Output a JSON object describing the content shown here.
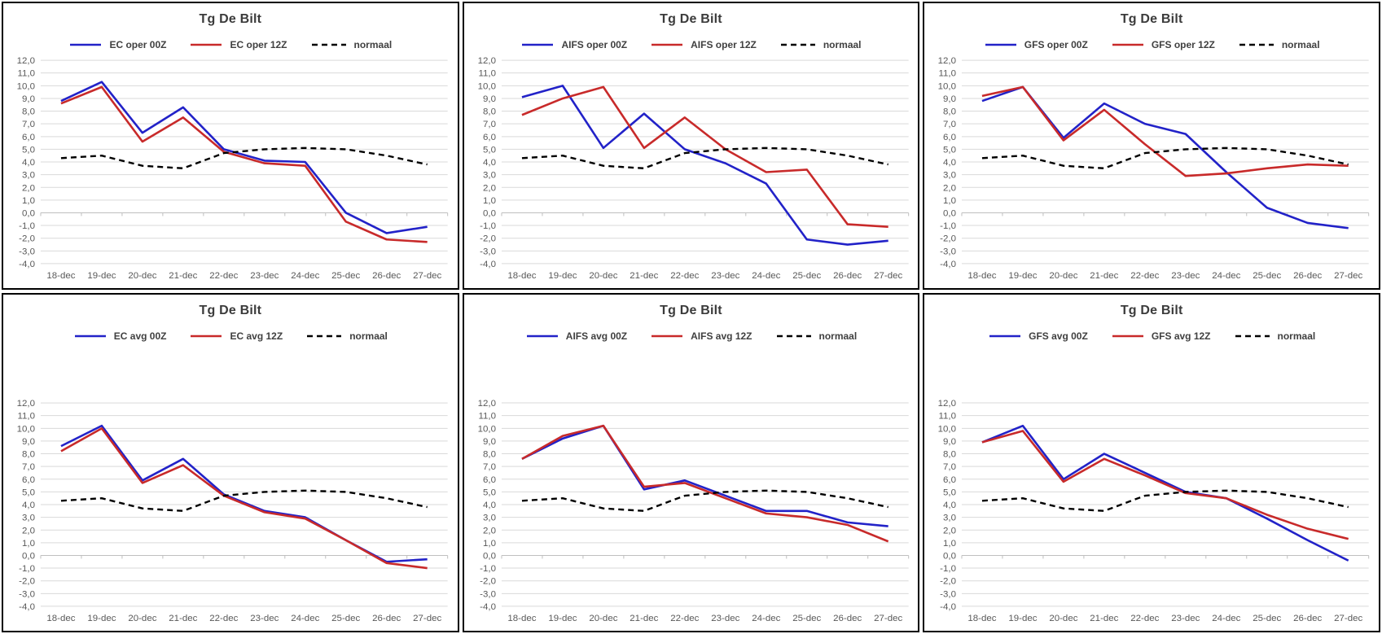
{
  "page": {
    "background": "#ffffff"
  },
  "colors": {
    "series_00z": "#2222c8",
    "series_12z": "#c82a2a",
    "normal_line": "#000000",
    "gridline": "#d9d9d9",
    "zero_line": "#bfbfbf",
    "axis_label": "#595959",
    "title_text": "#3b3b3b",
    "legend_text": "#404040",
    "panel_border": "#000000"
  },
  "chart_data": [
    {
      "type": "line",
      "title": "Tg De Bilt",
      "xlabel": "",
      "ylabel": "",
      "ylim": [
        -4,
        12
      ],
      "y_step": 1,
      "grid": "horizontal",
      "legend_position": "top",
      "y_tick_labels": [
        "12,0",
        "11,0",
        "10,0",
        "9,0",
        "8,0",
        "7,0",
        "6,0",
        "5,0",
        "4,0",
        "3,0",
        "2,0",
        "1,0",
        "0,0",
        "-1,0",
        "-2,0",
        "-3,0",
        "-4,0"
      ],
      "categories": [
        "18-dec",
        "19-dec",
        "20-dec",
        "21-dec",
        "22-dec",
        "23-dec",
        "24-dec",
        "25-dec",
        "26-dec",
        "27-dec"
      ],
      "series": [
        {
          "name": "EC oper 00Z",
          "color": "#2222c8",
          "style": "solid",
          "values": [
            8.8,
            10.3,
            6.3,
            8.3,
            5.0,
            4.1,
            4.0,
            0.0,
            -1.6,
            -1.1
          ]
        },
        {
          "name": "EC oper 12Z",
          "color": "#c82a2a",
          "style": "solid",
          "values": [
            8.6,
            9.9,
            5.6,
            7.5,
            4.8,
            3.9,
            3.7,
            -0.7,
            -2.1,
            -2.3
          ]
        },
        {
          "name": "normaal",
          "color": "#000000",
          "style": "dashed",
          "values": [
            4.3,
            4.5,
            3.7,
            3.5,
            4.7,
            5.0,
            5.1,
            5.0,
            4.5,
            3.8
          ]
        }
      ]
    },
    {
      "type": "line",
      "title": "Tg De Bilt",
      "xlabel": "",
      "ylabel": "",
      "ylim": [
        -4,
        12
      ],
      "y_step": 1,
      "grid": "horizontal",
      "legend_position": "top",
      "y_tick_labels": [
        "12,0",
        "11,0",
        "10,0",
        "9,0",
        "8,0",
        "7,0",
        "6,0",
        "5,0",
        "4,0",
        "3,0",
        "2,0",
        "1,0",
        "0,0",
        "-1,0",
        "-2,0",
        "-3,0",
        "-4,0"
      ],
      "categories": [
        "18-dec",
        "19-dec",
        "20-dec",
        "21-dec",
        "22-dec",
        "23-dec",
        "24-dec",
        "25-dec",
        "26-dec",
        "27-dec"
      ],
      "series": [
        {
          "name": "AIFS oper 00Z",
          "color": "#2222c8",
          "style": "solid",
          "values": [
            9.1,
            10.0,
            5.1,
            7.8,
            5.0,
            3.9,
            2.3,
            -2.1,
            -2.5,
            -2.2
          ]
        },
        {
          "name": "AIFS oper 12Z",
          "color": "#c82a2a",
          "style": "solid",
          "values": [
            7.7,
            9.0,
            9.9,
            5.1,
            7.5,
            5.0,
            3.2,
            3.4,
            -0.9,
            -1.1
          ]
        },
        {
          "name": "normaal",
          "color": "#000000",
          "style": "dashed",
          "values": [
            4.3,
            4.5,
            3.7,
            3.5,
            4.7,
            5.0,
            5.1,
            5.0,
            4.5,
            3.8
          ]
        }
      ]
    },
    {
      "type": "line",
      "title": "Tg De Bilt",
      "xlabel": "",
      "ylabel": "",
      "ylim": [
        -4,
        12
      ],
      "y_step": 1,
      "grid": "horizontal",
      "legend_position": "top",
      "y_tick_labels": [
        "12,0",
        "11,0",
        "10,0",
        "9,0",
        "8,0",
        "7,0",
        "6,0",
        "5,0",
        "4,0",
        "3,0",
        "2,0",
        "1,0",
        "0,0",
        "-1,0",
        "-2,0",
        "-3,0",
        "-4,0"
      ],
      "categories": [
        "18-dec",
        "19-dec",
        "20-dec",
        "21-dec",
        "22-dec",
        "23-dec",
        "24-dec",
        "25-dec",
        "26-dec",
        "27-dec"
      ],
      "series": [
        {
          "name": "GFS oper 00Z",
          "color": "#2222c8",
          "style": "solid",
          "values": [
            8.8,
            9.9,
            5.9,
            8.6,
            7.0,
            6.2,
            3.2,
            0.4,
            -0.8,
            -1.2
          ]
        },
        {
          "name": "GFS oper 12Z",
          "color": "#c82a2a",
          "style": "solid",
          "values": [
            9.2,
            9.9,
            5.7,
            8.1,
            5.4,
            2.9,
            3.1,
            3.5,
            3.8,
            3.7
          ]
        },
        {
          "name": "normaal",
          "color": "#000000",
          "style": "dashed",
          "values": [
            4.3,
            4.5,
            3.7,
            3.5,
            4.7,
            5.0,
            5.1,
            5.0,
            4.5,
            3.8
          ]
        }
      ]
    },
    {
      "type": "line",
      "title": "Tg De Bilt",
      "xlabel": "",
      "ylabel": "",
      "ylim": [
        -4,
        12
      ],
      "y_step": 1,
      "grid": "horizontal",
      "legend_position": "top",
      "y_tick_labels": [
        "12,0",
        "11,0",
        "10,0",
        "9,0",
        "8,0",
        "7,0",
        "6,0",
        "5,0",
        "4,0",
        "3,0",
        "2,0",
        "1,0",
        "0,0",
        "-1,0",
        "-2,0",
        "-3,0",
        "-4,0"
      ],
      "categories": [
        "18-dec",
        "19-dec",
        "20-dec",
        "21-dec",
        "22-dec",
        "23-dec",
        "24-dec",
        "25-dec",
        "26-dec",
        "27-dec"
      ],
      "series": [
        {
          "name": "EC avg 00Z",
          "color": "#2222c8",
          "style": "solid",
          "values": [
            8.6,
            10.2,
            5.9,
            7.6,
            4.8,
            3.5,
            3.0,
            1.2,
            -0.5,
            -0.3
          ]
        },
        {
          "name": "EC avg 12Z",
          "color": "#c82a2a",
          "style": "solid",
          "values": [
            8.2,
            10.0,
            5.7,
            7.1,
            4.7,
            3.4,
            2.9,
            1.2,
            -0.6,
            -1.0
          ]
        },
        {
          "name": "normaal",
          "color": "#000000",
          "style": "dashed",
          "values": [
            4.3,
            4.5,
            3.7,
            3.5,
            4.7,
            5.0,
            5.1,
            5.0,
            4.5,
            3.8
          ]
        }
      ]
    },
    {
      "type": "line",
      "title": "Tg De Bilt",
      "xlabel": "",
      "ylabel": "",
      "ylim": [
        -4,
        12
      ],
      "y_step": 1,
      "grid": "horizontal",
      "legend_position": "top",
      "y_tick_labels": [
        "12,0",
        "11,0",
        "10,0",
        "9,0",
        "8,0",
        "7,0",
        "6,0",
        "5,0",
        "4,0",
        "3,0",
        "2,0",
        "1,0",
        "0,0",
        "-1,0",
        "-2,0",
        "-3,0",
        "-4,0"
      ],
      "categories": [
        "18-dec",
        "19-dec",
        "20-dec",
        "21-dec",
        "22-dec",
        "23-dec",
        "24-dec",
        "25-dec",
        "26-dec",
        "27-dec"
      ],
      "series": [
        {
          "name": "AIFS avg 00Z",
          "color": "#2222c8",
          "style": "solid",
          "values": [
            7.6,
            9.2,
            10.2,
            5.2,
            5.9,
            4.7,
            3.5,
            3.5,
            2.6,
            2.3
          ]
        },
        {
          "name": "AIFS avg 12Z",
          "color": "#c82a2a",
          "style": "solid",
          "values": [
            7.6,
            9.4,
            10.2,
            5.4,
            5.7,
            4.5,
            3.3,
            3.0,
            2.4,
            1.1
          ]
        },
        {
          "name": "normaal",
          "color": "#000000",
          "style": "dashed",
          "values": [
            4.3,
            4.5,
            3.7,
            3.5,
            4.7,
            5.0,
            5.1,
            5.0,
            4.5,
            3.8
          ]
        }
      ]
    },
    {
      "type": "line",
      "title": "Tg De Bilt",
      "xlabel": "",
      "ylabel": "",
      "ylim": [
        -4,
        12
      ],
      "y_step": 1,
      "grid": "horizontal",
      "legend_position": "top",
      "y_tick_labels": [
        "12,0",
        "11,0",
        "10,0",
        "9,0",
        "8,0",
        "7,0",
        "6,0",
        "5,0",
        "4,0",
        "3,0",
        "2,0",
        "1,0",
        "0,0",
        "-1,0",
        "-2,0",
        "-3,0",
        "-4,0"
      ],
      "categories": [
        "18-dec",
        "19-dec",
        "20-dec",
        "21-dec",
        "22-dec",
        "23-dec",
        "24-dec",
        "25-dec",
        "26-dec",
        "27-dec"
      ],
      "series": [
        {
          "name": "GFS avg 00Z",
          "color": "#2222c8",
          "style": "solid",
          "values": [
            8.9,
            10.2,
            6.0,
            8.0,
            6.5,
            5.0,
            4.5,
            2.9,
            1.2,
            -0.4
          ]
        },
        {
          "name": "GFS avg 12Z",
          "color": "#c82a2a",
          "style": "solid",
          "values": [
            8.9,
            9.8,
            5.8,
            7.6,
            6.3,
            4.9,
            4.5,
            3.2,
            2.1,
            1.3
          ]
        },
        {
          "name": "normaal",
          "color": "#000000",
          "style": "dashed",
          "values": [
            4.3,
            4.5,
            3.7,
            3.5,
            4.7,
            5.0,
            5.1,
            5.0,
            4.5,
            3.8
          ]
        }
      ]
    }
  ]
}
